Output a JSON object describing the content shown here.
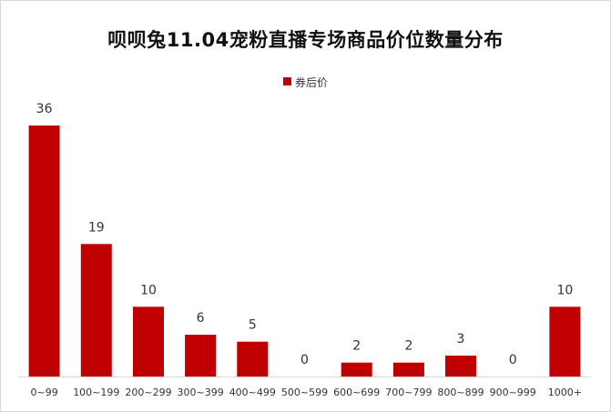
{
  "chart_data": {
    "type": "bar",
    "title": "呗呗兔11.04宠粉直播专场商品价位数量分布",
    "xlabel": "",
    "ylabel": "",
    "categories": [
      "0~99",
      "100~199",
      "200~299",
      "300~399",
      "400~499",
      "500~599",
      "600~699",
      "700~799",
      "800~899",
      "900~999",
      "1000+"
    ],
    "series": [
      {
        "name": "券后价",
        "values": [
          36,
          19,
          10,
          6,
          5,
          0,
          2,
          2,
          3,
          0,
          10
        ]
      }
    ],
    "ylim": [
      0,
      36
    ],
    "grid": false,
    "legend_position": "top",
    "data_labels": true,
    "colors": {
      "bar": "#c00000",
      "axis": "#d9d9d9"
    }
  }
}
